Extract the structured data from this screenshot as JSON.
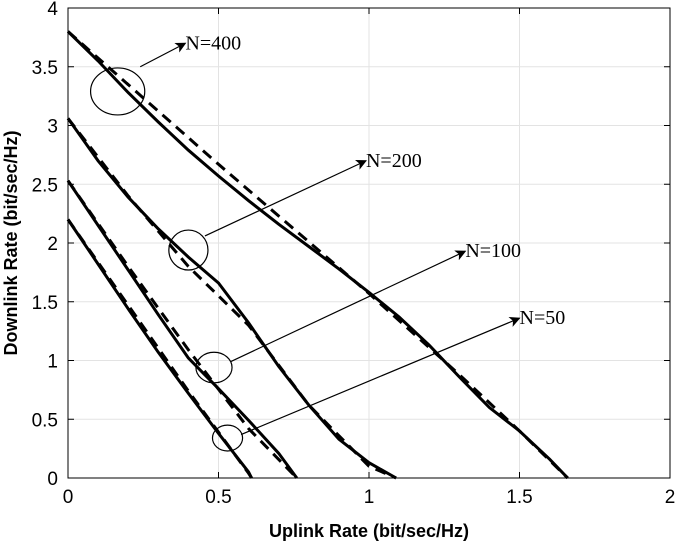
{
  "chart_data": {
    "type": "line",
    "xlabel": "Uplink Rate (bit/sec/Hz)",
    "ylabel": "Downlink Rate (bit/sec/Hz)",
    "xlim": [
      0,
      2
    ],
    "ylim": [
      0,
      4
    ],
    "xticks": [
      0,
      0.5,
      1,
      1.5,
      2
    ],
    "xtick_labels": [
      "0",
      "0.5",
      "1",
      "1.5",
      "2"
    ],
    "yticks": [
      0,
      0.5,
      1,
      1.5,
      2,
      2.5,
      3,
      3.5,
      4
    ],
    "ytick_labels": [
      "0",
      "0.5",
      "1",
      "1.5",
      "2",
      "2.5",
      "3",
      "3.5",
      "4"
    ],
    "grid": true,
    "groups": [
      {
        "label": "N=400",
        "solid": [
          [
            0,
            3.8
          ],
          [
            0.1,
            3.55
          ],
          [
            0.2,
            3.28
          ],
          [
            0.3,
            3.03
          ],
          [
            0.4,
            2.79
          ],
          [
            0.5,
            2.57
          ],
          [
            0.6,
            2.36
          ],
          [
            0.7,
            2.16
          ],
          [
            0.8,
            1.97
          ],
          [
            0.9,
            1.78
          ],
          [
            1.0,
            1.58
          ],
          [
            1.1,
            1.37
          ],
          [
            1.2,
            1.13
          ],
          [
            1.3,
            0.86
          ],
          [
            1.4,
            0.6
          ],
          [
            1.5,
            0.4
          ],
          [
            1.6,
            0.16
          ],
          [
            1.66,
            0
          ]
        ],
        "dashed": [
          [
            0,
            3.8
          ],
          [
            0.5,
            2.67
          ],
          [
            1.0,
            1.57
          ],
          [
            1.3,
            0.88
          ],
          [
            1.5,
            0.4
          ],
          [
            1.66,
            0
          ]
        ],
        "ellipse": {
          "cx": 0.165,
          "cy": 3.29,
          "rx": 0.09,
          "ry": 0.2
        },
        "arrow_start": [
          0.24,
          3.5
        ],
        "arrow_end": [
          0.39,
          3.7
        ],
        "label_pos": [
          0.39,
          3.7
        ]
      },
      {
        "label": "N=200",
        "solid": [
          [
            0,
            3.06
          ],
          [
            0.1,
            2.7
          ],
          [
            0.2,
            2.39
          ],
          [
            0.3,
            2.12
          ],
          [
            0.4,
            1.88
          ],
          [
            0.5,
            1.66
          ],
          [
            0.6,
            1.32
          ],
          [
            0.7,
            0.95
          ],
          [
            0.8,
            0.62
          ],
          [
            0.9,
            0.33
          ],
          [
            1.0,
            0.13
          ],
          [
            1.09,
            0
          ]
        ],
        "dashed": [
          [
            0,
            3.06
          ],
          [
            0.2,
            2.4
          ],
          [
            0.4,
            1.8
          ],
          [
            0.6,
            1.3
          ],
          [
            0.8,
            0.62
          ],
          [
            1.0,
            0.1
          ],
          [
            1.09,
            0
          ]
        ],
        "ellipse": {
          "cx": 0.4,
          "cy": 1.94,
          "rx": 0.065,
          "ry": 0.17
        },
        "arrow_start": [
          0.455,
          2.06
        ],
        "arrow_end": [
          0.99,
          2.7
        ],
        "label_pos": [
          0.99,
          2.7
        ]
      },
      {
        "label": "N=100",
        "solid": [
          [
            0,
            2.53
          ],
          [
            0.1,
            2.15
          ],
          [
            0.2,
            1.77
          ],
          [
            0.3,
            1.39
          ],
          [
            0.4,
            1.02
          ],
          [
            0.5,
            0.76
          ],
          [
            0.6,
            0.49
          ],
          [
            0.7,
            0.21
          ],
          [
            0.76,
            0
          ]
        ],
        "dashed": [
          [
            0,
            2.53
          ],
          [
            0.2,
            1.8
          ],
          [
            0.4,
            1.09
          ],
          [
            0.6,
            0.42
          ],
          [
            0.76,
            0
          ]
        ],
        "ellipse": {
          "cx": 0.485,
          "cy": 0.94,
          "rx": 0.06,
          "ry": 0.13
        },
        "arrow_start": [
          0.54,
          0.99
        ],
        "arrow_end": [
          1.32,
          1.93
        ],
        "label_pos": [
          1.32,
          1.93
        ]
      },
      {
        "label": "N=50",
        "solid": [
          [
            0,
            2.2
          ],
          [
            0.1,
            1.82
          ],
          [
            0.2,
            1.44
          ],
          [
            0.3,
            1.07
          ],
          [
            0.4,
            0.72
          ],
          [
            0.5,
            0.38
          ],
          [
            0.6,
            0.05
          ],
          [
            0.61,
            0
          ]
        ],
        "dashed": [
          [
            0,
            2.2
          ],
          [
            0.2,
            1.47
          ],
          [
            0.4,
            0.74
          ],
          [
            0.6,
            0.04
          ],
          [
            0.61,
            0
          ]
        ],
        "ellipse": {
          "cx": 0.53,
          "cy": 0.34,
          "rx": 0.05,
          "ry": 0.11
        },
        "arrow_start": [
          0.575,
          0.37
        ],
        "arrow_end": [
          1.5,
          1.36
        ],
        "label_pos": [
          1.5,
          1.36
        ]
      }
    ]
  }
}
